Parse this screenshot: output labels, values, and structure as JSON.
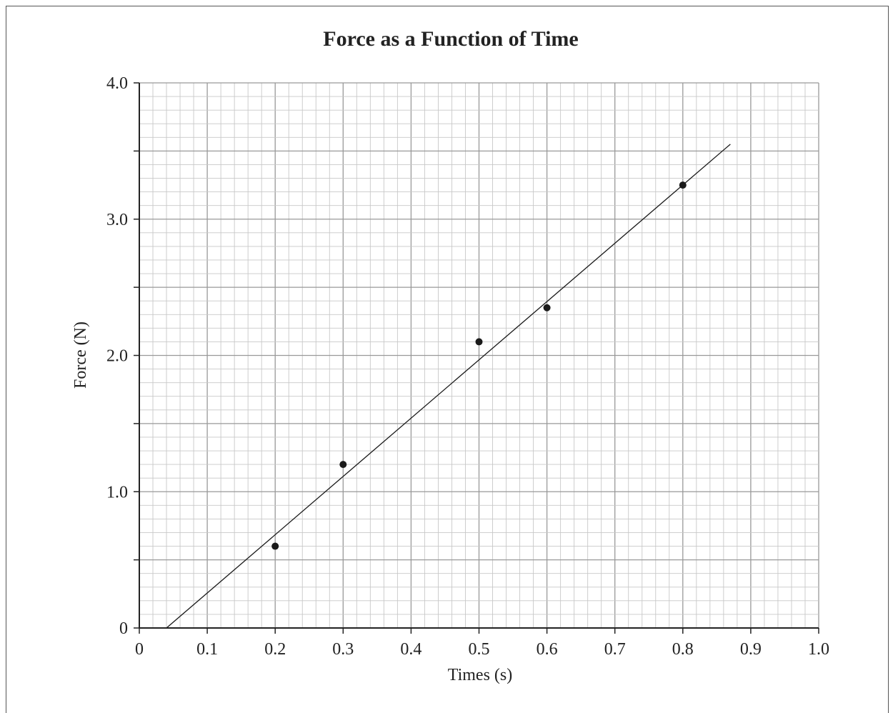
{
  "chart_data": {
    "type": "scatter",
    "title": "Force as a Function of Time",
    "xlabel": "Times (s)",
    "ylabel": "Force (N)",
    "xlim": [
      0,
      1.0
    ],
    "ylim": [
      0,
      4.0
    ],
    "grid": true,
    "x_tick_labels": [
      "0",
      "0.1",
      "0.2",
      "0.3",
      "0.4",
      "0.5",
      "0.6",
      "0.7",
      "0.8",
      "0.9",
      "1.0"
    ],
    "y_tick_labels": [
      "0",
      "1.0",
      "2.0",
      "3.0",
      "4.0"
    ],
    "x_tick_values": [
      0,
      0.1,
      0.2,
      0.3,
      0.4,
      0.5,
      0.6,
      0.7,
      0.8,
      0.9,
      1.0
    ],
    "y_tick_values": [
      0,
      1.0,
      2.0,
      3.0,
      4.0
    ],
    "points": [
      {
        "x": 0.2,
        "y": 0.6
      },
      {
        "x": 0.3,
        "y": 1.2
      },
      {
        "x": 0.5,
        "y": 2.1
      },
      {
        "x": 0.6,
        "y": 2.35
      },
      {
        "x": 0.8,
        "y": 3.25
      }
    ],
    "best_fit_line": {
      "x_start": 0.04,
      "y_start": 0.0,
      "x_end": 0.87,
      "y_end": 3.55
    },
    "colors": {
      "points": "#1a1a1a",
      "line": "#1a1a1a",
      "grid_major": "#999999",
      "grid_minor": "#c8c8c8",
      "axes": "#222222"
    }
  }
}
